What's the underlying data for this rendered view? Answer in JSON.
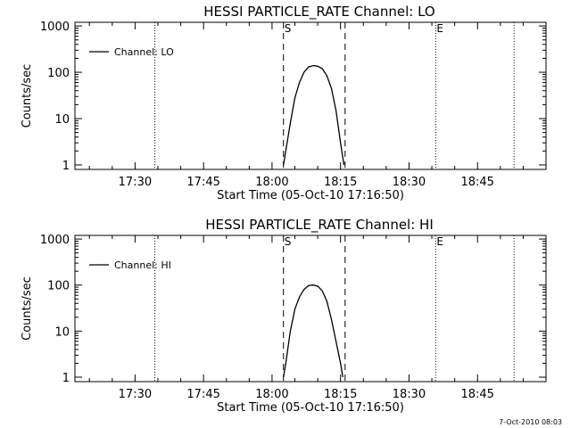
{
  "footer": {
    "timestamp": "7-Oct-2010 08:03"
  },
  "chart_data": [
    {
      "type": "line",
      "title": "HESSI PARTICLE_RATE Channel: LO",
      "xlabel": "Start Time (05-Oct-10 17:16:50)",
      "ylabel": "Counts/sec",
      "yscale": "log",
      "xlim": [
        "17:16:50",
        "19:00:00"
      ],
      "ylim": [
        0.8,
        1200
      ],
      "xticks": [
        "17:30",
        "17:45",
        "18:00",
        "18:15",
        "18:30",
        "18:45"
      ],
      "yticks": [
        1,
        10,
        100,
        1000
      ],
      "ytick_labels": [
        "1",
        "10",
        "100",
        "1000"
      ],
      "legend": {
        "label": "Channel: LO",
        "position": "top-left"
      },
      "dashed_markers": [
        {
          "time": "18:02:30",
          "label": "S"
        },
        {
          "time": "18:16:00",
          "label": ""
        }
      ],
      "dotted_markers": [
        {
          "time": "17:34:20",
          "label": ""
        },
        {
          "time": "18:35:50",
          "label": "E"
        },
        {
          "time": "18:53:00",
          "label": ""
        }
      ],
      "series": [
        {
          "x": [
            "18:02:30",
            "18:03:00",
            "18:04:00",
            "18:05:00",
            "18:06:00",
            "18:07:00",
            "18:08:00",
            "18:09:00",
            "18:10:00",
            "18:11:00",
            "18:12:00",
            "18:13:00",
            "18:14:00",
            "18:15:00",
            "18:15:45"
          ],
          "y": [
            1,
            2,
            8,
            28,
            60,
            100,
            130,
            140,
            135,
            120,
            85,
            45,
            15,
            3,
            1
          ]
        }
      ]
    },
    {
      "type": "line",
      "title": "HESSI PARTICLE_RATE Channel: HI",
      "xlabel": "Start Time (05-Oct-10 17:16:50)",
      "ylabel": "Counts/sec",
      "yscale": "log",
      "xlim": [
        "17:16:50",
        "19:00:00"
      ],
      "ylim": [
        0.8,
        1200
      ],
      "xticks": [
        "17:30",
        "17:45",
        "18:00",
        "18:15",
        "18:30",
        "18:45"
      ],
      "yticks": [
        1,
        10,
        100,
        1000
      ],
      "ytick_labels": [
        "1",
        "10",
        "100",
        "1000"
      ],
      "legend": {
        "label": "Channel: HI",
        "position": "top-left"
      },
      "dashed_markers": [
        {
          "time": "18:02:30",
          "label": "S"
        },
        {
          "time": "18:16:00",
          "label": ""
        }
      ],
      "dotted_markers": [
        {
          "time": "17:34:20",
          "label": ""
        },
        {
          "time": "18:35:50",
          "label": "E"
        },
        {
          "time": "18:53:00",
          "label": ""
        }
      ],
      "series": [
        {
          "x": [
            "18:02:30",
            "18:03:00",
            "18:04:00",
            "18:05:00",
            "18:06:00",
            "18:07:00",
            "18:08:00",
            "18:09:00",
            "18:10:00",
            "18:11:00",
            "18:12:00",
            "18:13:00",
            "18:14:00",
            "18:15:00",
            "18:15:30"
          ],
          "y": [
            1,
            2,
            10,
            30,
            55,
            80,
            98,
            100,
            95,
            75,
            45,
            18,
            6,
            2,
            1
          ]
        }
      ]
    }
  ]
}
